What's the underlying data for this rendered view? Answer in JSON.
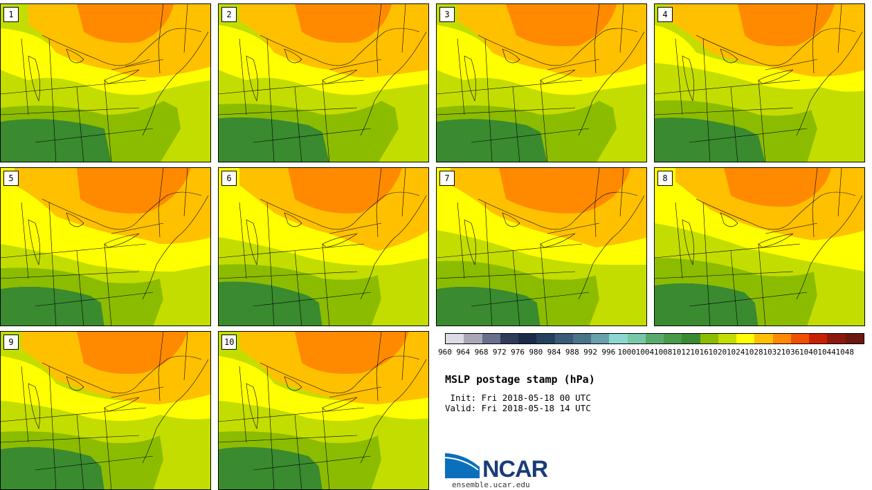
{
  "panels": [
    {
      "label": "1"
    },
    {
      "label": "2"
    },
    {
      "label": "3"
    },
    {
      "label": "4"
    },
    {
      "label": "5"
    },
    {
      "label": "6"
    },
    {
      "label": "7"
    },
    {
      "label": "8"
    },
    {
      "label": "9"
    },
    {
      "label": "10"
    }
  ],
  "colorbar": {
    "ticks": [
      "960",
      "964",
      "968",
      "972",
      "976",
      "980",
      "984",
      "988",
      "992",
      "996",
      "1000",
      "1004",
      "1008",
      "1012",
      "1016",
      "1020",
      "1024",
      "1028",
      "1032",
      "1036",
      "1040",
      "1044",
      "1048"
    ],
    "colors": [
      "#dcdce4",
      "#a8a8b8",
      "#68708c",
      "#2e3c5a",
      "#1a2a48",
      "#24405c",
      "#3a5a78",
      "#4a7488",
      "#6aa0aa",
      "#8cd8d0",
      "#78c8a8",
      "#5aaa70",
      "#4a9a4a",
      "#3a8a30",
      "#8cbc00",
      "#c3dd00",
      "#ffff00",
      "#ffc000",
      "#ff8a00",
      "#f05000",
      "#c82000",
      "#8c1810",
      "#6a1a10"
    ]
  },
  "title": "MSLP postage stamp (hPa)",
  "init": " Init: Fri 2018-05-18 00 UTC",
  "valid": "Valid: Fri 2018-05-18 14 UTC",
  "logo": {
    "text": "NCAR",
    "url": "ensemble.ucar.edu"
  },
  "colors": {
    "dark_green": "#3a8a30",
    "green": "#8cbc00",
    "yellow_green": "#c3dd00",
    "yellow": "#ffff00",
    "light_orange": "#ffc000",
    "orange": "#ff8a00"
  }
}
